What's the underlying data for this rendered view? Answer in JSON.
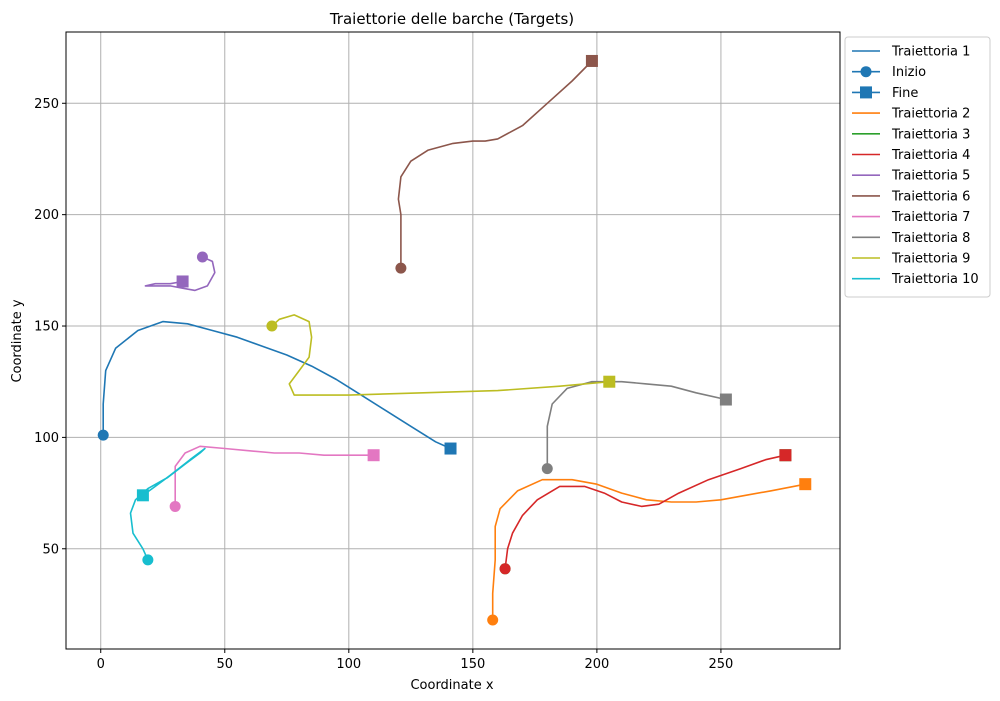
{
  "chart_data": {
    "type": "line",
    "title": "Traiettorie delle barche (Targets)",
    "xlabel": "Coordinate x",
    "ylabel": "Coordinate y",
    "xlim": [
      -14,
      298
    ],
    "ylim": [
      5,
      282
    ],
    "xticks": [
      0,
      50,
      100,
      150,
      200,
      250
    ],
    "yticks": [
      50,
      100,
      150,
      200,
      250
    ],
    "grid": true,
    "legend_position": "outside-right-top",
    "legend": [
      {
        "label": "Traiettoria 1",
        "color": "#1f77b4",
        "marker": "line"
      },
      {
        "label": "Inizio",
        "color": "#1f77b4",
        "marker": "circle"
      },
      {
        "label": "Fine",
        "color": "#1f77b4",
        "marker": "square"
      },
      {
        "label": "Traiettoria 2",
        "color": "#ff7f0e",
        "marker": "line"
      },
      {
        "label": "Traiettoria 3",
        "color": "#2ca02c",
        "marker": "line"
      },
      {
        "label": "Traiettoria 4",
        "color": "#d62728",
        "marker": "line"
      },
      {
        "label": "Traiettoria 5",
        "color": "#9467bd",
        "marker": "line"
      },
      {
        "label": "Traiettoria 6",
        "color": "#8c564b",
        "marker": "line"
      },
      {
        "label": "Traiettoria 7",
        "color": "#e377c2",
        "marker": "line"
      },
      {
        "label": "Traiettoria 8",
        "color": "#7f7f7f",
        "marker": "line"
      },
      {
        "label": "Traiettoria 9",
        "color": "#bcbd22",
        "marker": "line"
      },
      {
        "label": "Traiettoria 10",
        "color": "#17becf",
        "marker": "line"
      }
    ],
    "series": [
      {
        "name": "Traiettoria 1",
        "color": "#1f77b4",
        "points": [
          [
            1,
            101
          ],
          [
            1,
            115
          ],
          [
            2,
            130
          ],
          [
            6,
            140
          ],
          [
            15,
            148
          ],
          [
            25,
            152
          ],
          [
            35,
            151
          ],
          [
            45,
            148
          ],
          [
            55,
            145
          ],
          [
            65,
            141
          ],
          [
            75,
            137
          ],
          [
            85,
            132
          ],
          [
            95,
            126
          ],
          [
            105,
            119
          ],
          [
            115,
            112
          ],
          [
            125,
            105
          ],
          [
            135,
            98
          ],
          [
            141,
            95
          ]
        ]
      },
      {
        "name": "Traiettoria 2",
        "color": "#ff7f0e",
        "points": [
          [
            158,
            18
          ],
          [
            158,
            30
          ],
          [
            159,
            45
          ],
          [
            159,
            60
          ],
          [
            161,
            68
          ],
          [
            168,
            76
          ],
          [
            178,
            81
          ],
          [
            190,
            81
          ],
          [
            200,
            79
          ],
          [
            210,
            75
          ],
          [
            220,
            72
          ],
          [
            230,
            71
          ],
          [
            240,
            71
          ],
          [
            250,
            72
          ],
          [
            260,
            74
          ],
          [
            270,
            76
          ],
          [
            284,
            79
          ]
        ]
      },
      {
        "name": "Traiettoria 3",
        "color": "#2ca02c",
        "points": []
      },
      {
        "name": "Traiettoria 4",
        "color": "#d62728",
        "points": [
          [
            163,
            41
          ],
          [
            164,
            50
          ],
          [
            166,
            57
          ],
          [
            170,
            65
          ],
          [
            176,
            72
          ],
          [
            185,
            78
          ],
          [
            195,
            78
          ],
          [
            203,
            75
          ],
          [
            210,
            71
          ],
          [
            218,
            69
          ],
          [
            225,
            70
          ],
          [
            233,
            75
          ],
          [
            245,
            81
          ],
          [
            258,
            86
          ],
          [
            268,
            90
          ],
          [
            276,
            92
          ]
        ]
      },
      {
        "name": "Traiettoria 5",
        "color": "#9467bd",
        "points": [
          [
            41,
            181
          ],
          [
            45,
            179
          ],
          [
            46,
            174
          ],
          [
            43,
            168
          ],
          [
            38,
            166
          ],
          [
            33,
            167
          ],
          [
            28,
            168
          ],
          [
            22,
            168
          ],
          [
            18,
            168
          ],
          [
            22,
            169
          ],
          [
            28,
            169
          ],
          [
            33,
            170
          ]
        ]
      },
      {
        "name": "Traiettoria 6",
        "color": "#8c564b",
        "points": [
          [
            121,
            176
          ],
          [
            121,
            188
          ],
          [
            121,
            200
          ],
          [
            120,
            207
          ],
          [
            121,
            217
          ],
          [
            125,
            224
          ],
          [
            132,
            229
          ],
          [
            142,
            232
          ],
          [
            150,
            233
          ],
          [
            155,
            233
          ],
          [
            160,
            234
          ],
          [
            170,
            240
          ],
          [
            180,
            250
          ],
          [
            190,
            260
          ],
          [
            198,
            269
          ]
        ]
      },
      {
        "name": "Traiettoria 7",
        "color": "#e377c2",
        "points": [
          [
            30,
            69
          ],
          [
            30,
            78
          ],
          [
            30,
            87
          ],
          [
            34,
            93
          ],
          [
            40,
            96
          ],
          [
            50,
            95
          ],
          [
            60,
            94
          ],
          [
            70,
            93
          ],
          [
            80,
            93
          ],
          [
            90,
            92
          ],
          [
            100,
            92
          ],
          [
            110,
            92
          ]
        ]
      },
      {
        "name": "Traiettoria 8",
        "color": "#7f7f7f",
        "points": [
          [
            180,
            86
          ],
          [
            180,
            95
          ],
          [
            180,
            105
          ],
          [
            182,
            115
          ],
          [
            188,
            122
          ],
          [
            198,
            125
          ],
          [
            210,
            125
          ],
          [
            220,
            124
          ],
          [
            230,
            123
          ],
          [
            240,
            120
          ],
          [
            252,
            117
          ]
        ]
      },
      {
        "name": "Traiettoria 9",
        "color": "#bcbd22",
        "points": [
          [
            69,
            150
          ],
          [
            72,
            153
          ],
          [
            78,
            155
          ],
          [
            84,
            152
          ],
          [
            85,
            145
          ],
          [
            84,
            136
          ],
          [
            80,
            130
          ],
          [
            76,
            124
          ],
          [
            78,
            119
          ],
          [
            100,
            119
          ],
          [
            130,
            120
          ],
          [
            160,
            121
          ],
          [
            185,
            123
          ],
          [
            205,
            125
          ]
        ]
      },
      {
        "name": "Traiettoria 10",
        "color": "#17becf",
        "points": [
          [
            19,
            45
          ],
          [
            17,
            50
          ],
          [
            13,
            57
          ],
          [
            12,
            66
          ],
          [
            14,
            72
          ],
          [
            19,
            77
          ],
          [
            27,
            82
          ],
          [
            34,
            88
          ],
          [
            40,
            93
          ],
          [
            42,
            95
          ],
          [
            36,
            90
          ],
          [
            28,
            83
          ],
          [
            22,
            78
          ],
          [
            17,
            74
          ]
        ]
      }
    ],
    "start_markers": [
      {
        "series": "Traiettoria 1",
        "x": 1,
        "y": 101,
        "color": "#1f77b4"
      },
      {
        "series": "Traiettoria 2",
        "x": 158,
        "y": 18,
        "color": "#ff7f0e"
      },
      {
        "series": "Traiettoria 3",
        "x": 163,
        "y": 41,
        "color": "#2ca02c"
      },
      {
        "series": "Traiettoria 4",
        "x": 163,
        "y": 41,
        "color": "#d62728"
      },
      {
        "series": "Traiettoria 5",
        "x": 41,
        "y": 181,
        "color": "#9467bd"
      },
      {
        "series": "Traiettoria 6",
        "x": 121,
        "y": 176,
        "color": "#8c564b"
      },
      {
        "series": "Traiettoria 7",
        "x": 30,
        "y": 69,
        "color": "#e377c2"
      },
      {
        "series": "Traiettoria 8",
        "x": 180,
        "y": 86,
        "color": "#7f7f7f"
      },
      {
        "series": "Traiettoria 9",
        "x": 69,
        "y": 150,
        "color": "#bcbd22"
      },
      {
        "series": "Traiettoria 10",
        "x": 19,
        "y": 45,
        "color": "#17becf"
      }
    ],
    "end_markers": [
      {
        "series": "Traiettoria 1",
        "x": 141,
        "y": 95,
        "color": "#1f77b4"
      },
      {
        "series": "Traiettoria 2",
        "x": 284,
        "y": 79,
        "color": "#ff7f0e"
      },
      {
        "series": "Traiettoria 3",
        "x": 276,
        "y": 92,
        "color": "#2ca02c"
      },
      {
        "series": "Traiettoria 4",
        "x": 276,
        "y": 92,
        "color": "#d62728"
      },
      {
        "series": "Traiettoria 5",
        "x": 33,
        "y": 170,
        "color": "#9467bd"
      },
      {
        "series": "Traiettoria 6",
        "x": 198,
        "y": 269,
        "color": "#8c564b"
      },
      {
        "series": "Traiettoria 7",
        "x": 110,
        "y": 92,
        "color": "#e377c2"
      },
      {
        "series": "Traiettoria 8",
        "x": 252,
        "y": 117,
        "color": "#7f7f7f"
      },
      {
        "series": "Traiettoria 9",
        "x": 205,
        "y": 125,
        "color": "#bcbd22"
      },
      {
        "series": "Traiettoria 10",
        "x": 17,
        "y": 74,
        "color": "#17becf"
      }
    ]
  }
}
